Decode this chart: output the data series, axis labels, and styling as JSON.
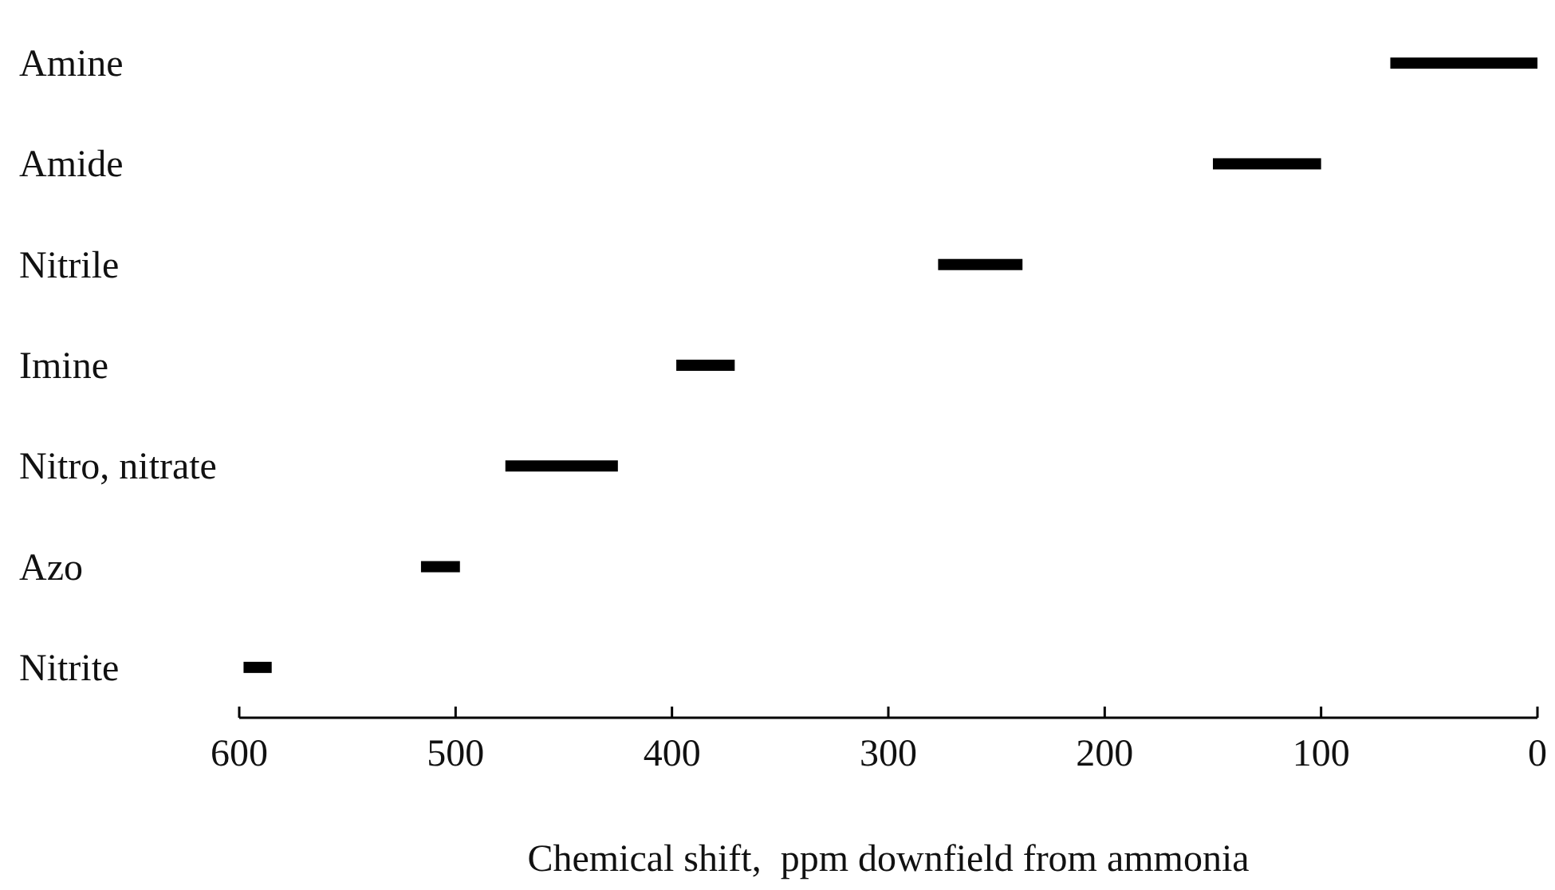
{
  "chart_data": {
    "type": "bar",
    "orientation": "horizontal",
    "xlabel": "Chemical shift,  ppm downfield from ammonia",
    "categories": [
      "Amine",
      "Amide",
      "Nitrile",
      "Imine",
      "Nitro, nitrate",
      "Azo",
      "Nitrite"
    ],
    "base": [
      0,
      100,
      238,
      371,
      425,
      498,
      585
    ],
    "values": [
      68,
      50,
      39,
      27,
      52,
      18,
      13
    ],
    "color": "#000000",
    "xlim": [
      600,
      0
    ],
    "xticks": [
      600,
      500,
      400,
      300,
      200,
      100,
      0
    ],
    "grid": false
  }
}
